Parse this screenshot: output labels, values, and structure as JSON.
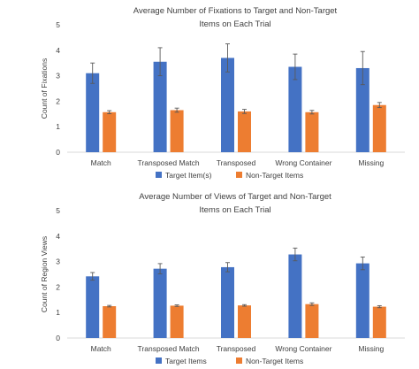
{
  "chart_data": [
    {
      "type": "bar",
      "title": "Average Number of Fixations to Target and Non-Target Items on Each Trial",
      "title_lines": [
        "Average Number of Fixations to Target and Non-Target",
        "Items on Each Trial"
      ],
      "ylabel": "Count of Fixations",
      "xlabel": "",
      "ylim": [
        0,
        5
      ],
      "yticks": [
        0,
        1,
        2,
        3,
        4,
        5
      ],
      "grid": false,
      "legend_position": "bottom",
      "categories": [
        "Match",
        "Transposed Match",
        "Transposed",
        "Wrong Container",
        "Missing"
      ],
      "series": [
        {
          "name": "Target Item(s)",
          "color": "#4472C4",
          "values": [
            3.1,
            3.55,
            3.7,
            3.35,
            3.3
          ],
          "errors": [
            0.4,
            0.55,
            0.55,
            0.5,
            0.65
          ]
        },
        {
          "name": "Non-Target Items",
          "color": "#ED7D31",
          "values": [
            1.57,
            1.65,
            1.6,
            1.57,
            1.85
          ],
          "errors": [
            0.06,
            0.08,
            0.08,
            0.07,
            0.1
          ]
        }
      ]
    },
    {
      "type": "bar",
      "title": "Average Number of Views of Target and Non-Target Items on Each Trial",
      "title_lines": [
        "Average Number of Views of Target and Non-Target",
        "Items on Each Trial"
      ],
      "ylabel": "Count of Region Views",
      "xlabel": "",
      "ylim": [
        0,
        5
      ],
      "yticks": [
        0,
        1,
        2,
        3,
        4,
        5
      ],
      "grid": false,
      "legend_position": "bottom",
      "categories": [
        "Match",
        "Transposed Match",
        "Transposed",
        "Wrong Container",
        "Missing"
      ],
      "series": [
        {
          "name": "Target Items",
          "color": "#4472C4",
          "values": [
            2.42,
            2.72,
            2.78,
            3.28,
            2.93
          ],
          "errors": [
            0.15,
            0.2,
            0.18,
            0.25,
            0.25
          ]
        },
        {
          "name": "Non-Target Items",
          "color": "#ED7D31",
          "values": [
            1.25,
            1.27,
            1.28,
            1.33,
            1.23
          ],
          "errors": [
            0.03,
            0.03,
            0.03,
            0.05,
            0.04
          ]
        }
      ]
    }
  ]
}
